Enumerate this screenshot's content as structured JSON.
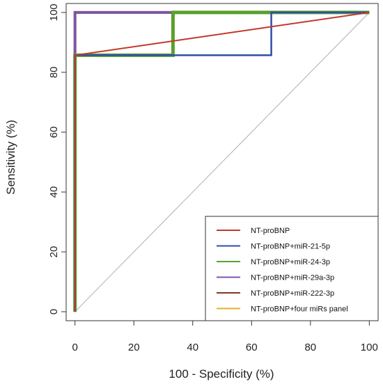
{
  "chart_data": {
    "type": "line",
    "title": "",
    "xlabel": "100 - Specificity (%)",
    "ylabel": "Sensitivity (%)",
    "xlim": [
      -3,
      103
    ],
    "ylim": [
      -3,
      103
    ],
    "x_ticks": [
      "0",
      "20",
      "40",
      "60",
      "80",
      "100"
    ],
    "y_ticks": [
      "0",
      "20",
      "40",
      "60",
      "80",
      "100"
    ],
    "grid": false,
    "legend_position": "bottom-right",
    "reference_line": {
      "x": [
        0,
        100
      ],
      "y": [
        0,
        100
      ],
      "color": "#b0b0b0"
    },
    "series": [
      {
        "name": "NT-proBNP",
        "color": "#c0392b",
        "width": 2,
        "x": [
          0,
          0,
          100
        ],
        "y": [
          0,
          85.7,
          100
        ]
      },
      {
        "name": "NT-proBNP+miR-21-5p",
        "color": "#2d4fa8",
        "width": 2.5,
        "x": [
          0,
          0,
          66.7,
          66.7,
          100
        ],
        "y": [
          0,
          85.7,
          85.7,
          100,
          100
        ]
      },
      {
        "name": "NT-proBNP+miR-24-3p",
        "color": "#5aa02c",
        "width": 5,
        "x": [
          0,
          0,
          33.3,
          33.3,
          100
        ],
        "y": [
          0,
          85.7,
          85.7,
          100,
          100
        ]
      },
      {
        "name": "NT-proBNP+miR-29a-3p",
        "color": "#7d55a8",
        "width": 4,
        "x": [
          0,
          0,
          100
        ],
        "y": [
          0,
          100,
          100
        ]
      },
      {
        "name": "NT-proBNP+miR-222-3p",
        "color": "#7b3a22",
        "width": 3,
        "x": [
          0,
          0,
          33.3,
          33.3,
          100
        ],
        "y": [
          0,
          85.7,
          85.7,
          100,
          100
        ]
      },
      {
        "name": "NT-proBNP+four miRs panel",
        "color": "#e6b030",
        "width": 4,
        "x": [
          0,
          0,
          100
        ],
        "y": [
          0,
          100,
          100
        ]
      }
    ]
  }
}
